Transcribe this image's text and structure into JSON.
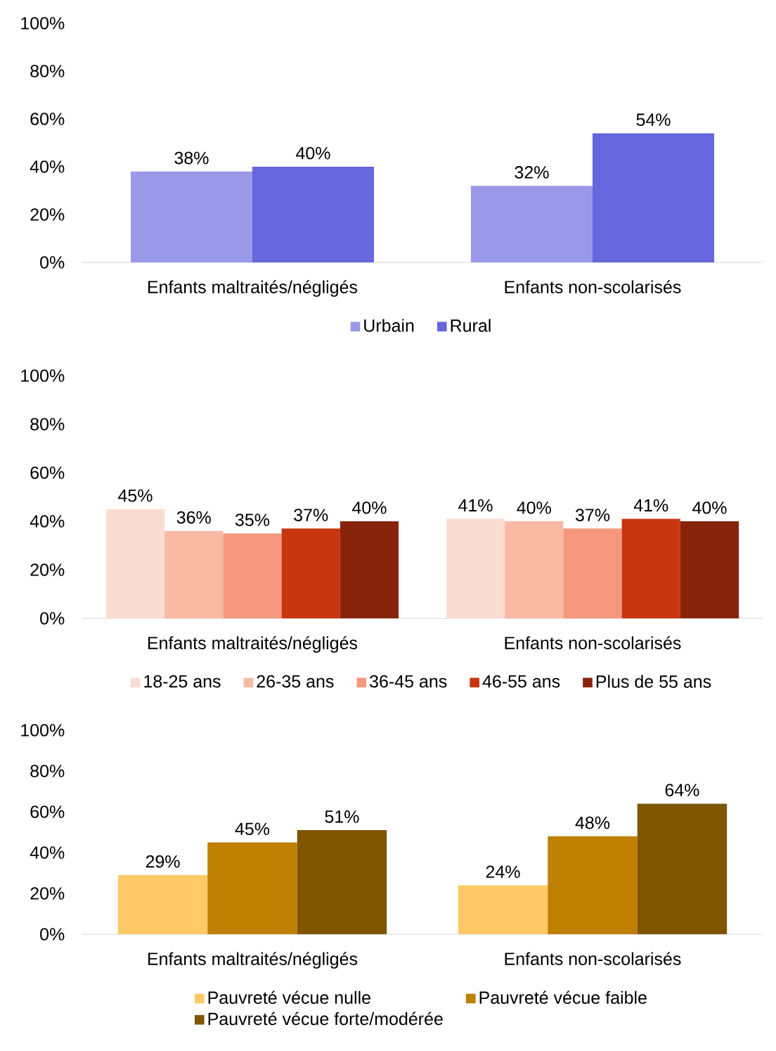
{
  "chart_data": [
    {
      "type": "bar",
      "categories": [
        "Enfants maltraités/négligés",
        "Enfants non-scolarisés"
      ],
      "ylim": [
        0,
        100
      ],
      "yticks": [
        {
          "value": 0,
          "label": "0%"
        },
        {
          "value": 20,
          "label": "20%"
        },
        {
          "value": 40,
          "label": "40%"
        },
        {
          "value": 60,
          "label": "60%"
        },
        {
          "value": 80,
          "label": "80%"
        },
        {
          "value": 100,
          "label": "100%"
        }
      ],
      "legend": "bottom",
      "series": [
        {
          "name": "Urbain",
          "color": "#9999e8",
          "values": [
            38,
            32
          ],
          "value_labels": [
            "38%",
            "32%"
          ]
        },
        {
          "name": "Rural",
          "color": "#6666dd",
          "values": [
            40,
            54
          ],
          "value_labels": [
            "40%",
            "54%"
          ]
        }
      ]
    },
    {
      "type": "bar",
      "categories": [
        "Enfants maltraités/négligés",
        "Enfants non-scolarisés"
      ],
      "ylim": [
        0,
        100
      ],
      "yticks": [
        {
          "value": 0,
          "label": "0%"
        },
        {
          "value": 20,
          "label": "20%"
        },
        {
          "value": 40,
          "label": "40%"
        },
        {
          "value": 60,
          "label": "60%"
        },
        {
          "value": 80,
          "label": "80%"
        },
        {
          "value": 100,
          "label": "100%"
        }
      ],
      "legend": "bottom",
      "series": [
        {
          "name": "18-25 ans",
          "color": "#fadcd3",
          "values": [
            45,
            41
          ],
          "value_labels": [
            "45%",
            "41%"
          ]
        },
        {
          "name": "26-35 ans",
          "color": "#f8b9a5",
          "values": [
            36,
            40
          ],
          "value_labels": [
            "36%",
            "40%"
          ]
        },
        {
          "name": "36-45 ans",
          "color": "#f5977d",
          "values": [
            35,
            37
          ],
          "value_labels": [
            "35%",
            "37%"
          ]
        },
        {
          "name": "46-55 ans",
          "color": "#c83610",
          "values": [
            37,
            41
          ],
          "value_labels": [
            "37%",
            "41%"
          ]
        },
        {
          "name": "Plus de 55 ans",
          "color": "#89240c",
          "values": [
            40,
            40
          ],
          "value_labels": [
            "40%",
            "40%"
          ]
        }
      ]
    },
    {
      "type": "bar",
      "categories": [
        "Enfants maltraités/négligés",
        "Enfants non-scolarisés"
      ],
      "ylim": [
        0,
        100
      ],
      "yticks": [
        {
          "value": 0,
          "label": "0%"
        },
        {
          "value": 20,
          "label": "20%"
        },
        {
          "value": 40,
          "label": "40%"
        },
        {
          "value": 60,
          "label": "60%"
        },
        {
          "value": 80,
          "label": "80%"
        },
        {
          "value": 100,
          "label": "100%"
        }
      ],
      "legend": "bottom",
      "series": [
        {
          "name": "Pauvreté vécue nulle",
          "color": "#fec966",
          "values": [
            29,
            24
          ],
          "value_labels": [
            "29%",
            "24%"
          ]
        },
        {
          "name": "Pauvreté vécue faible",
          "color": "#bf7f00",
          "values": [
            45,
            48
          ],
          "value_labels": [
            "45%",
            "48%"
          ]
        },
        {
          "name": "Pauvreté vécue forte/modérée",
          "color": "#7f5500",
          "values": [
            51,
            64
          ],
          "value_labels": [
            "51%",
            "64%"
          ]
        }
      ]
    }
  ]
}
